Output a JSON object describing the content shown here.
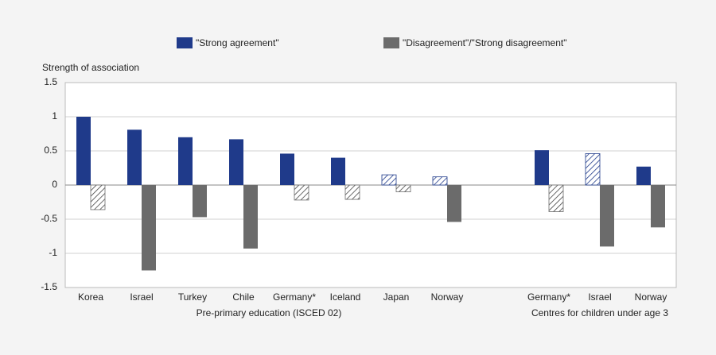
{
  "chart_data": {
    "type": "bar",
    "y_label": "Strength of association",
    "categories": [
      "Korea",
      "Israel",
      "Turkey",
      "Chile",
      "Germany*",
      "Iceland",
      "Japan",
      "Norway",
      null,
      "Germany*",
      "Israel",
      "Norway"
    ],
    "groups": [
      "Pre-primary education (ISCED 02)",
      "Centres for children under age 3"
    ],
    "series": [
      {
        "name": "\"Strong agreement\"",
        "color": "#1f3a8a",
        "values": [
          1.0,
          0.81,
          0.7,
          0.67,
          0.46,
          0.4,
          0.15,
          0.12,
          null,
          0.51,
          0.46,
          0.27
        ],
        "hatched": [
          false,
          false,
          false,
          false,
          false,
          false,
          true,
          true,
          null,
          false,
          true,
          false
        ]
      },
      {
        "name": "\"Disagreement\"/\"Strong disagreement\"",
        "color": "#6b6b6b",
        "values": [
          -0.36,
          -1.25,
          -0.47,
          -0.93,
          -0.22,
          -0.21,
          -0.1,
          -0.54,
          null,
          -0.39,
          -0.9,
          -0.62
        ],
        "hatched": [
          true,
          false,
          false,
          false,
          true,
          true,
          true,
          false,
          null,
          true,
          false,
          false
        ]
      }
    ],
    "ylim": [
      -1.5,
      1.5
    ],
    "yticks": [
      1.5,
      1,
      0.5,
      0,
      -0.5,
      -1,
      -1.5
    ],
    "grid": true,
    "legend": "top"
  }
}
